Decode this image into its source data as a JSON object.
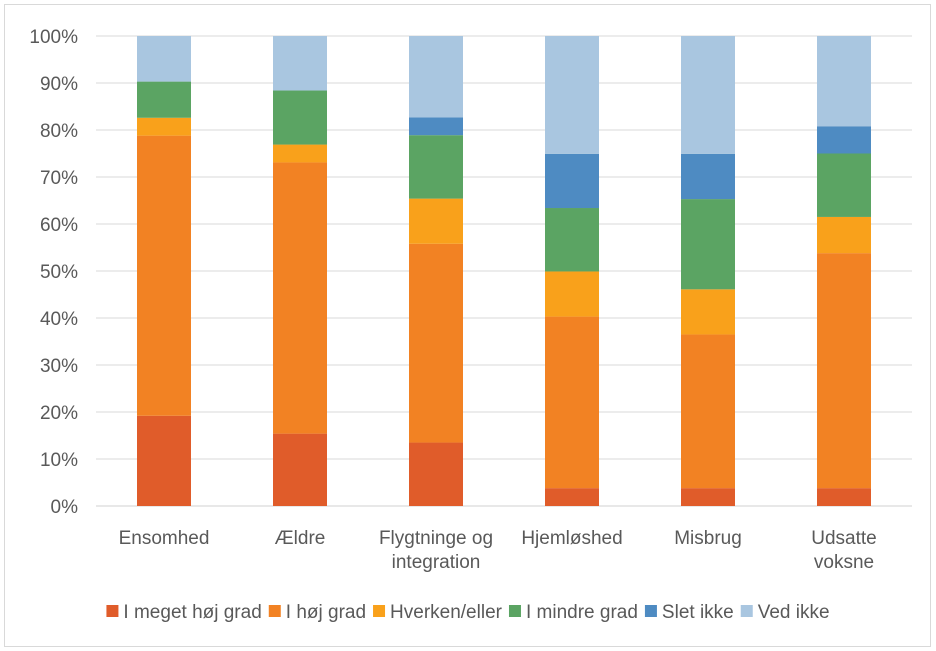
{
  "chart_data": {
    "type": "bar",
    "stacked": true,
    "percent": true,
    "title": "",
    "xlabel": "",
    "ylabel": "",
    "ylim": [
      0,
      100
    ],
    "yticks": [
      "0%",
      "10%",
      "20%",
      "30%",
      "40%",
      "50%",
      "60%",
      "70%",
      "80%",
      "90%",
      "100%"
    ],
    "grid": true,
    "legend_position": "bottom",
    "categories": [
      [
        "Ensomhed"
      ],
      [
        "Ældre"
      ],
      [
        "Flygtninge og",
        "integration"
      ],
      [
        "Hjemløshed"
      ],
      [
        "Misbrug"
      ],
      [
        "Udsatte",
        "voksne"
      ]
    ],
    "series": [
      {
        "name": "I meget høj grad",
        "color": "#e05c2a",
        "values": [
          19.2,
          15.4,
          13.5,
          3.8,
          3.8,
          3.8
        ]
      },
      {
        "name": "I høj grad",
        "color": "#f28223",
        "values": [
          59.6,
          57.7,
          42.3,
          36.5,
          32.7,
          50.0
        ]
      },
      {
        "name": "Hverken/eller",
        "color": "#f9a11b",
        "values": [
          3.8,
          3.8,
          9.6,
          9.6,
          9.6,
          7.7
        ]
      },
      {
        "name": "I mindre grad",
        "color": "#5ba463",
        "values": [
          7.7,
          11.5,
          13.5,
          13.5,
          19.2,
          13.5
        ]
      },
      {
        "name": "Slet ikke",
        "color": "#4e8bc2",
        "values": [
          0,
          0,
          3.8,
          11.5,
          9.6,
          5.8
        ]
      },
      {
        "name": "Ved ikke",
        "color": "#a9c6e0",
        "values": [
          9.7,
          11.6,
          17.3,
          25.1,
          25.1,
          19.2
        ]
      }
    ]
  }
}
